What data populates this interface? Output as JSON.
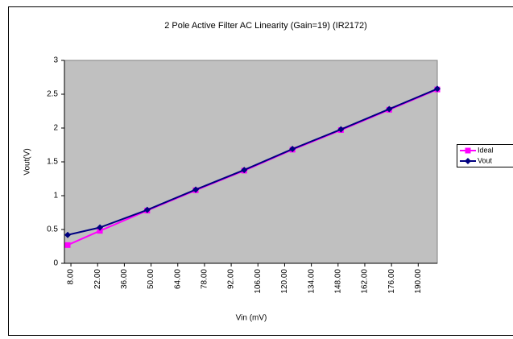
{
  "chart_data": {
    "type": "line",
    "title": "2 Pole Active Filter AC Linearity (Gain=19) (IR2172)",
    "xlabel": "Vin (mV)",
    "ylabel": "Vout(V)",
    "x": [
      6.3,
      23.2,
      48,
      73.4,
      98.8,
      124.1,
      149.5,
      174.8,
      200
    ],
    "series": [
      {
        "name": "Ideal",
        "color": "#ff00ff",
        "marker": "square",
        "values": [
          0.27,
          0.48,
          0.78,
          1.08,
          1.37,
          1.68,
          1.97,
          2.27,
          2.57
        ]
      },
      {
        "name": "Vout",
        "color": "#000080",
        "marker": "diamond",
        "values": [
          0.42,
          0.53,
          0.79,
          1.09,
          1.38,
          1.69,
          1.98,
          2.28,
          2.58
        ]
      }
    ],
    "xlim": [
      4.6,
      200
    ],
    "xticks": [
      {
        "value": 8,
        "label": "8.00"
      },
      {
        "value": 22,
        "label": "22.00"
      },
      {
        "value": 36,
        "label": "36.00"
      },
      {
        "value": 50,
        "label": "50.00"
      },
      {
        "value": 64,
        "label": "64.00"
      },
      {
        "value": 78,
        "label": "78.00"
      },
      {
        "value": 92,
        "label": "92.00"
      },
      {
        "value": 106,
        "label": "106.00"
      },
      {
        "value": 120,
        "label": "120.00"
      },
      {
        "value": 134,
        "label": "134.00"
      },
      {
        "value": 148,
        "label": "148.00"
      },
      {
        "value": 162,
        "label": "162.00"
      },
      {
        "value": 176,
        "label": "176.00"
      },
      {
        "value": 190,
        "label": "190.00"
      }
    ],
    "ylim": [
      0,
      3
    ],
    "yticks": [
      0,
      0.5,
      1,
      1.5,
      2,
      2.5,
      3
    ],
    "grid": false,
    "plot_background": "#c0c0c0",
    "legend": "right"
  }
}
